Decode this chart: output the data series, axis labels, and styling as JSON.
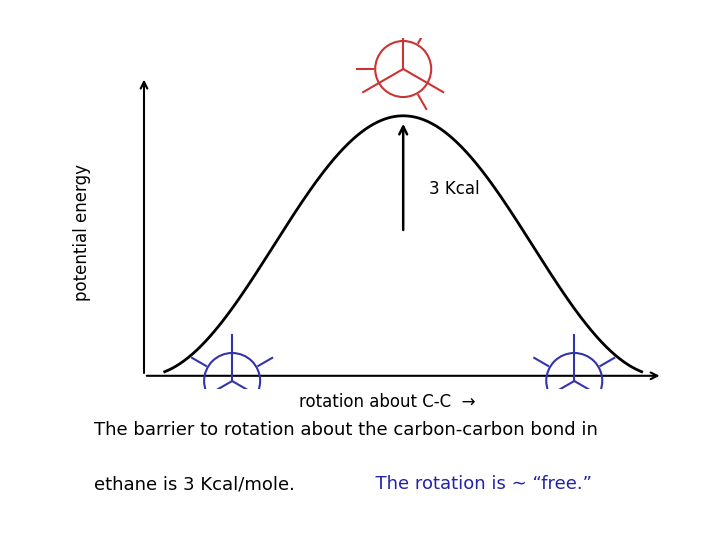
{
  "bg_color": "#ffffff",
  "curve_color": "#000000",
  "arrow_color": "#000000",
  "axis_color": "#000000",
  "label_3kcal": "3 Kcal",
  "text_black_1": "The barrier to rotation about the carbon-carbon bond in",
  "text_black_2": "ethane is 3 Kcal/mole.",
  "text_blue": "  The rotation is ∼ “free.”",
  "text_black_color": "#000000",
  "text_blue_color": "#2222aa",
  "newman_staggered_color": "#3333aa",
  "newman_eclipsed_color": "#cc3333",
  "xlabel": "rotation about C-C",
  "ylabel": "potential energy",
  "fig_width": 7.2,
  "fig_height": 5.4,
  "dpi": 100
}
